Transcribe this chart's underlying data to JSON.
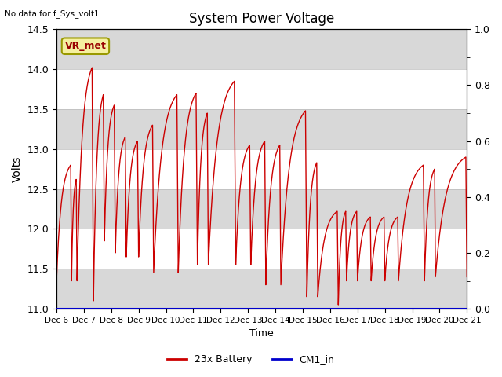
{
  "title": "System Power Voltage",
  "top_left_text": "No data for f_Sys_volt1",
  "ylabel": "Volts",
  "xlabel": "Time",
  "ylim_left": [
    11.0,
    14.5
  ],
  "ylim_right": [
    0.0,
    1.0
  ],
  "background_color": "#ffffff",
  "plot_bg_color": "#ffffff",
  "grid_color": "#ffffff",
  "x_tick_labels": [
    "Dec 6",
    "Dec 7",
    "Dec 8",
    "Dec 9",
    "Dec 10",
    "Dec 11",
    "Dec 12",
    "Dec 13",
    "Dec 14",
    "Dec 15",
    "Dec 16",
    "Dec 17",
    "Dec 18",
    "Dec 19",
    "Dec 20",
    "Dec 21"
  ],
  "vr_met_label": "VR_met",
  "legend_entries": [
    "23x Battery",
    "CM1_in"
  ],
  "legend_colors": [
    "#cc0000",
    "#0000cc"
  ],
  "line_color_battery": "#cc0000",
  "line_color_cm1": "#0000cc",
  "right_yticks": [
    0.0,
    0.2,
    0.4,
    0.6,
    0.8,
    1.0
  ],
  "left_yticks": [
    11.0,
    11.5,
    12.0,
    12.5,
    13.0,
    13.5,
    14.0,
    14.5
  ],
  "band_colors": [
    "#d8d8d8",
    "#ffffff"
  ],
  "band_ranges": [
    [
      11.0,
      11.5
    ],
    [
      11.5,
      12.0
    ],
    [
      12.0,
      12.5
    ],
    [
      12.5,
      13.0
    ],
    [
      13.0,
      13.5
    ],
    [
      13.5,
      14.0
    ],
    [
      14.0,
      14.5
    ]
  ],
  "band_alphas": [
    1,
    0,
    1,
    0,
    1,
    0,
    1
  ]
}
